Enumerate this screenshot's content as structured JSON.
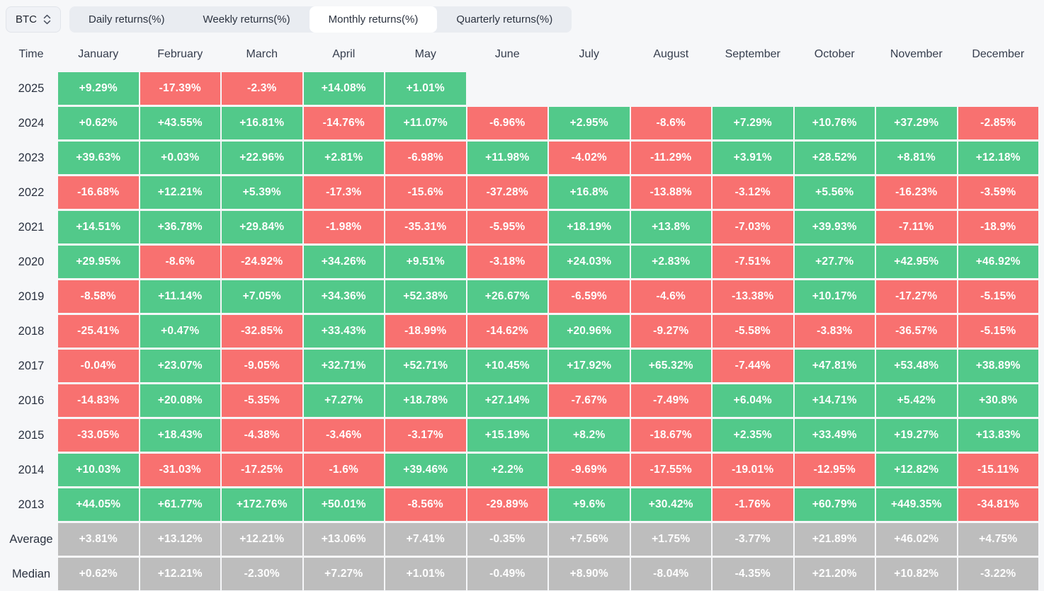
{
  "toolbar": {
    "symbol": "BTC",
    "tabs": [
      {
        "label": "Daily returns(%)",
        "active": false
      },
      {
        "label": "Weekly returns(%)",
        "active": false
      },
      {
        "label": "Monthly returns(%)",
        "active": true
      },
      {
        "label": "Quarterly returns(%)",
        "active": false
      }
    ]
  },
  "colors": {
    "positive": "#52c98a",
    "negative": "#f87170",
    "summary": "#bdbdbd"
  },
  "chart_data": {
    "type": "heatmap",
    "title": "BTC Monthly returns(%)",
    "corner_label": "Time",
    "months": [
      "January",
      "February",
      "March",
      "April",
      "May",
      "June",
      "July",
      "August",
      "September",
      "October",
      "November",
      "December"
    ],
    "rows": [
      {
        "label": "2025",
        "type": "year",
        "values": [
          "+9.29%",
          "-17.39%",
          "-2.3%",
          "+14.08%",
          "+1.01%",
          "",
          "",
          "",
          "",
          "",
          "",
          ""
        ]
      },
      {
        "label": "2024",
        "type": "year",
        "values": [
          "+0.62%",
          "+43.55%",
          "+16.81%",
          "-14.76%",
          "+11.07%",
          "-6.96%",
          "+2.95%",
          "-8.6%",
          "+7.29%",
          "+10.76%",
          "+37.29%",
          "-2.85%"
        ]
      },
      {
        "label": "2023",
        "type": "year",
        "values": [
          "+39.63%",
          "+0.03%",
          "+22.96%",
          "+2.81%",
          "-6.98%",
          "+11.98%",
          "-4.02%",
          "-11.29%",
          "+3.91%",
          "+28.52%",
          "+8.81%",
          "+12.18%"
        ]
      },
      {
        "label": "2022",
        "type": "year",
        "values": [
          "-16.68%",
          "+12.21%",
          "+5.39%",
          "-17.3%",
          "-15.6%",
          "-37.28%",
          "+16.8%",
          "-13.88%",
          "-3.12%",
          "+5.56%",
          "-16.23%",
          "-3.59%"
        ]
      },
      {
        "label": "2021",
        "type": "year",
        "values": [
          "+14.51%",
          "+36.78%",
          "+29.84%",
          "-1.98%",
          "-35.31%",
          "-5.95%",
          "+18.19%",
          "+13.8%",
          "-7.03%",
          "+39.93%",
          "-7.11%",
          "-18.9%"
        ]
      },
      {
        "label": "2020",
        "type": "year",
        "values": [
          "+29.95%",
          "-8.6%",
          "-24.92%",
          "+34.26%",
          "+9.51%",
          "-3.18%",
          "+24.03%",
          "+2.83%",
          "-7.51%",
          "+27.7%",
          "+42.95%",
          "+46.92%"
        ]
      },
      {
        "label": "2019",
        "type": "year",
        "values": [
          "-8.58%",
          "+11.14%",
          "+7.05%",
          "+34.36%",
          "+52.38%",
          "+26.67%",
          "-6.59%",
          "-4.6%",
          "-13.38%",
          "+10.17%",
          "-17.27%",
          "-5.15%"
        ]
      },
      {
        "label": "2018",
        "type": "year",
        "values": [
          "-25.41%",
          "+0.47%",
          "-32.85%",
          "+33.43%",
          "-18.99%",
          "-14.62%",
          "+20.96%",
          "-9.27%",
          "-5.58%",
          "-3.83%",
          "-36.57%",
          "-5.15%"
        ]
      },
      {
        "label": "2017",
        "type": "year",
        "values": [
          "-0.04%",
          "+23.07%",
          "-9.05%",
          "+32.71%",
          "+52.71%",
          "+10.45%",
          "+17.92%",
          "+65.32%",
          "-7.44%",
          "+47.81%",
          "+53.48%",
          "+38.89%"
        ]
      },
      {
        "label": "2016",
        "type": "year",
        "values": [
          "-14.83%",
          "+20.08%",
          "-5.35%",
          "+7.27%",
          "+18.78%",
          "+27.14%",
          "-7.67%",
          "-7.49%",
          "+6.04%",
          "+14.71%",
          "+5.42%",
          "+30.8%"
        ]
      },
      {
        "label": "2015",
        "type": "year",
        "values": [
          "-33.05%",
          "+18.43%",
          "-4.38%",
          "-3.46%",
          "-3.17%",
          "+15.19%",
          "+8.2%",
          "-18.67%",
          "+2.35%",
          "+33.49%",
          "+19.27%",
          "+13.83%"
        ]
      },
      {
        "label": "2014",
        "type": "year",
        "values": [
          "+10.03%",
          "-31.03%",
          "-17.25%",
          "-1.6%",
          "+39.46%",
          "+2.2%",
          "-9.69%",
          "-17.55%",
          "-19.01%",
          "-12.95%",
          "+12.82%",
          "-15.11%"
        ]
      },
      {
        "label": "2013",
        "type": "year",
        "values": [
          "+44.05%",
          "+61.77%",
          "+172.76%",
          "+50.01%",
          "-8.56%",
          "-29.89%",
          "+9.6%",
          "+30.42%",
          "-1.76%",
          "+60.79%",
          "+449.35%",
          "-34.81%"
        ]
      },
      {
        "label": "Average",
        "type": "summary",
        "values": [
          "+3.81%",
          "+13.12%",
          "+12.21%",
          "+13.06%",
          "+7.41%",
          "-0.35%",
          "+7.56%",
          "+1.75%",
          "-3.77%",
          "+21.89%",
          "+46.02%",
          "+4.75%"
        ]
      },
      {
        "label": "Median",
        "type": "summary",
        "values": [
          "+0.62%",
          "+12.21%",
          "-2.30%",
          "+7.27%",
          "+1.01%",
          "-0.49%",
          "+8.90%",
          "-8.04%",
          "-4.35%",
          "+21.20%",
          "+10.82%",
          "-3.22%"
        ]
      }
    ]
  }
}
